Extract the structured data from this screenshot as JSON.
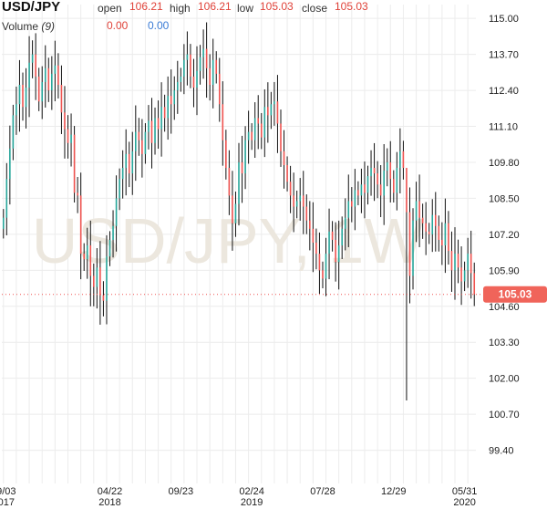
{
  "header": {
    "symbol": "USD/JPY",
    "open_label": "open",
    "open_value": "106.21",
    "high_label": "high",
    "high_value": "106.21",
    "low_label": "low",
    "low_value": "105.03",
    "close_label": "close",
    "close_value": "105.03",
    "volume_label": "Volume",
    "volume_period": "(9)",
    "volume_value_1": "0.00",
    "volume_value_2": "0.00"
  },
  "watermark": "USD/JPY, 1W",
  "last_price_label": "105.03",
  "colors": {
    "up": "#26a69a",
    "down": "#ef5350",
    "neutral": "#111111",
    "grid": "#ececec",
    "watermark": "#ece7de",
    "price_badge": "#f0645a"
  },
  "chart_data": {
    "type": "candlestick",
    "title": "USD/JPY",
    "interval": "1W",
    "y_ticks": [
      115.0,
      113.7,
      112.4,
      111.1,
      109.8,
      108.5,
      107.2,
      105.9,
      104.6,
      103.3,
      102.0,
      100.7,
      99.4
    ],
    "ylim": [
      98.2,
      115.5
    ],
    "x_ticks": [
      {
        "label": "09/03",
        "year": "2017",
        "index": 0
      },
      {
        "label": "04/22",
        "year": "2018",
        "index": 33
      },
      {
        "label": "09/23",
        "year": "",
        "index": 55
      },
      {
        "label": "02/24",
        "year": "2019",
        "index": 77
      },
      {
        "label": "07/28",
        "year": "",
        "index": 99
      },
      {
        "label": "12/29",
        "year": "",
        "index": 121
      },
      {
        "label": "05/31",
        "year": "2020",
        "index": 143
      }
    ],
    "closes": [
      107.8,
      109.2,
      110.3,
      111.5,
      111.9,
      112.6,
      111.8,
      112.5,
      113.4,
      113.7,
      112.9,
      112.0,
      112.7,
      113.2,
      112.4,
      113.0,
      113.3,
      112.6,
      111.6,
      111.0,
      110.5,
      110.8,
      108.7,
      108.6,
      106.5,
      106.3,
      106.8,
      105.7,
      105.3,
      106.0,
      105.0,
      104.8,
      106.4,
      107.0,
      107.5,
      108.5,
      109.2,
      109.6,
      110.1,
      109.4,
      110.2,
      110.9,
      110.6,
      110.1,
      110.9,
      111.3,
      110.5,
      111.4,
      111.0,
      111.8,
      111.4,
      112.2,
      111.9,
      112.4,
      112.7,
      112.9,
      113.5,
      113.7,
      112.9,
      112.5,
      113.1,
      113.6,
      113.9,
      113.2,
      112.6,
      113.5,
      113.0,
      111.9,
      110.6,
      109.6,
      108.6,
      107.6,
      108.3,
      109.8,
      109.4,
      110.6,
      110.9,
      110.6,
      111.4,
      111.2,
      110.7,
      111.8,
      111.5,
      111.9,
      112.0,
      111.2,
      110.2,
      109.7,
      109.1,
      108.6,
      108.2,
      108.4,
      108.6,
      108.2,
      107.7,
      107.4,
      106.9,
      106.5,
      105.9,
      105.6,
      106.5,
      107.3,
      107.0,
      106.2,
      106.8,
      107.4,
      107.8,
      108.4,
      108.2,
      108.8,
      108.6,
      109.0,
      108.7,
      109.3,
      109.6,
      109.4,
      109.0,
      108.6,
      109.5,
      109.8,
      109.2,
      108.7,
      109.6,
      110.2,
      109.6,
      108.0,
      105.7,
      107.7,
      108.4,
      107.8,
      107.6,
      107.3,
      107.2,
      107.9,
      107.5,
      107.0,
      106.8,
      107.6,
      106.6,
      105.9,
      106.5,
      106.0,
      105.5,
      105.9,
      106.5,
      105.8,
      105.03
    ]
  }
}
